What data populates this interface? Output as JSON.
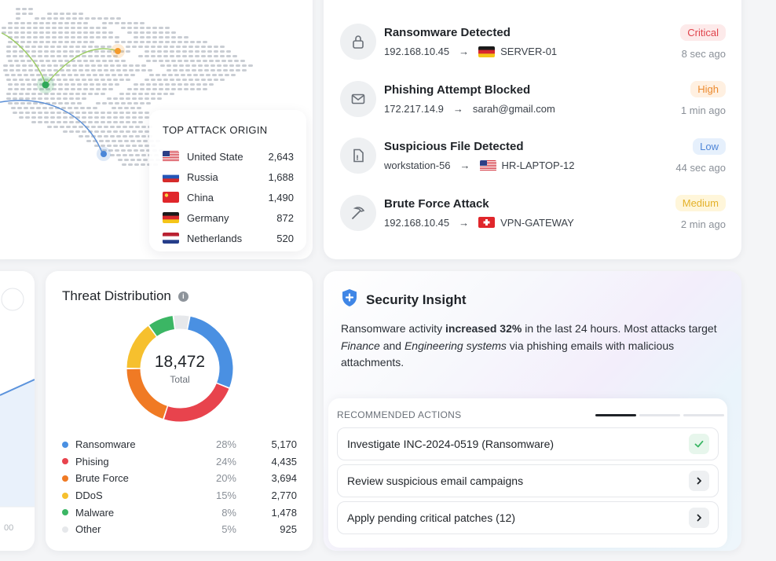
{
  "origins": {
    "title": "TOP ATTACK ORIGIN",
    "rows": [
      {
        "country": "United State",
        "count": "2,643",
        "flag": "flag-usa-icon"
      },
      {
        "country": "Russia",
        "count": "1,688",
        "flag": "flag-russia-icon"
      },
      {
        "country": "China",
        "count": "1,490",
        "flag": "flag-china-icon"
      },
      {
        "country": "Germany",
        "count": "872",
        "flag": "flag-germany-icon"
      },
      {
        "country": "Netherlands",
        "count": "520",
        "flag": "flag-netherlands-icon"
      }
    ]
  },
  "alerts": [
    {
      "title": "Ransomware Detected",
      "source": "192.168.10.45",
      "target": "SERVER-01",
      "target_flag": "flag-germany-icon",
      "severity": "Critical",
      "time": "8 sec ago",
      "icon": "lock-icon"
    },
    {
      "title": "Phishing Attempt Blocked",
      "source": "172.217.14.9",
      "target": "sarah@gmail.com",
      "target_flag": "",
      "severity": "High",
      "time": "1 min ago",
      "icon": "mail-icon"
    },
    {
      "title": "Suspicious File Detected",
      "source": "workstation-56",
      "target": "HR-LAPTOP-12",
      "target_flag": "flag-usa-icon",
      "severity": "Low",
      "time": "44 sec ago",
      "icon": "file-icon"
    },
    {
      "title": "Brute Force Attack",
      "source": "192.168.10.45",
      "target": "VPN-GATEWAY",
      "target_flag": "flag-switzerland-icon",
      "severity": "Medium",
      "time": "2 min ago",
      "icon": "pickaxe-icon"
    }
  ],
  "threat": {
    "title": "Threat Distribution",
    "total": "18,472",
    "total_label": "Total",
    "items": [
      {
        "name": "Ransomware",
        "pct": "28%",
        "value": "5,170",
        "color": "#4a90e2"
      },
      {
        "name": "Phising",
        "pct": "24%",
        "value": "4,435",
        "color": "#e8434d"
      },
      {
        "name": "Brute Force",
        "pct": "20%",
        "value": "3,694",
        "color": "#f07a24"
      },
      {
        "name": "DDoS",
        "pct": "15%",
        "value": "2,770",
        "color": "#f6c02e"
      },
      {
        "name": "Malware",
        "pct": "8%",
        "value": "1,478",
        "color": "#3bb664"
      },
      {
        "name": "Other",
        "pct": "5%",
        "value": "925",
        "color": "#e6e8eb"
      }
    ],
    "chart_data": {
      "type": "pie",
      "categories": [
        "Ransomware",
        "Phising",
        "Brute Force",
        "DDoS",
        "Malware",
        "Other"
      ],
      "values": [
        5170,
        4435,
        3694,
        2770,
        1478,
        925
      ]
    }
  },
  "insight": {
    "title": "Security Insight",
    "text_1": "Ransomware activity ",
    "text_2": "increased 32%",
    "text_3": " in the last 24 hours. Most attacks target ",
    "text_4": "Finance",
    "text_5": " and ",
    "text_6": "Engineering systems",
    "text_7": " via phishing emails with malicious attachments.",
    "actions_title": "RECOMMENDED ACTIONS",
    "actions": [
      {
        "label": "Investigate INC-2024-0519 (Ransomware)",
        "state": "done"
      },
      {
        "label": "Review suspicious email campaigns",
        "state": "open"
      },
      {
        "label": "Apply pending critical patches (12)",
        "state": "open"
      }
    ]
  },
  "left_partial": {
    "axis_label": "00"
  }
}
